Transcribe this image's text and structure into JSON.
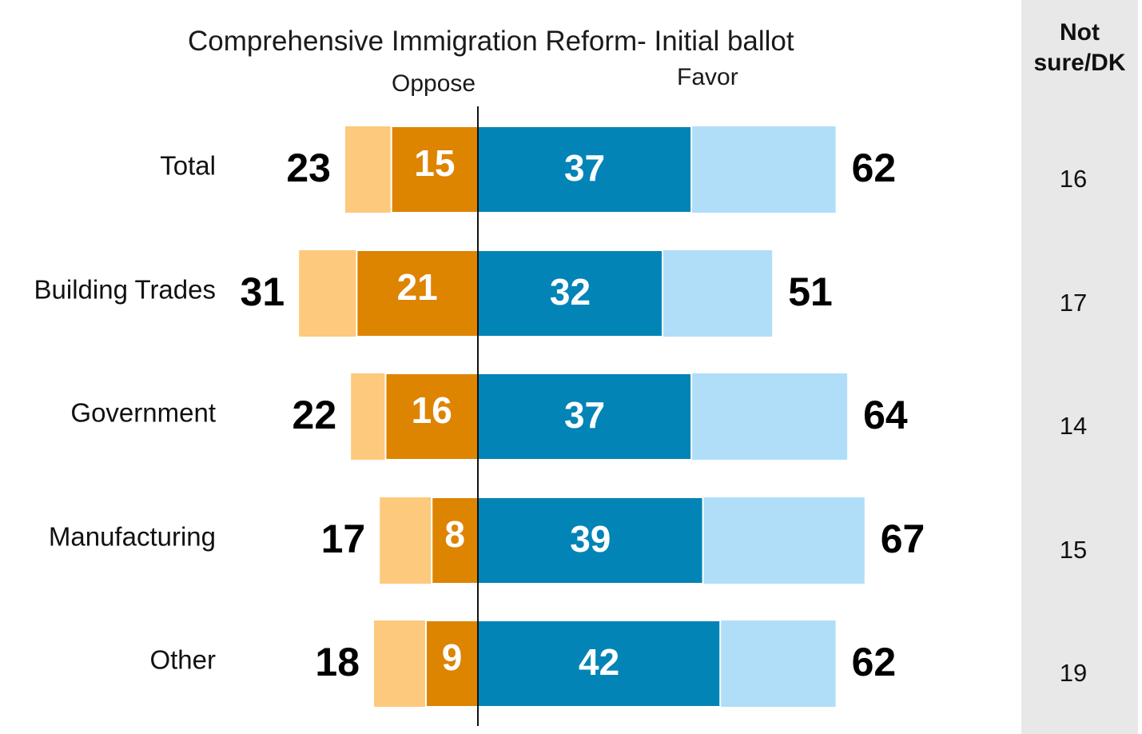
{
  "chart_data": {
    "type": "bar",
    "subtype": "diverging-stacked",
    "title": "Comprehensive Immigration Reform- Initial ballot",
    "oppose_label": "Oppose",
    "favor_label": "Favor",
    "not_sure_header": "Not sure/DK",
    "categories": [
      "Total",
      "Building Trades",
      "Government",
      "Manufacturing",
      "Other"
    ],
    "series": [
      {
        "name": "Oppose",
        "strong_values": [
          15,
          21,
          16,
          8,
          9
        ],
        "values": [
          23,
          31,
          22,
          17,
          18
        ]
      },
      {
        "name": "Favor",
        "strong_values": [
          37,
          32,
          37,
          39,
          42
        ],
        "values": [
          62,
          51,
          64,
          67,
          62
        ]
      },
      {
        "name": "Not sure/DK",
        "values": [
          16,
          17,
          14,
          15,
          19
        ]
      }
    ],
    "colors": {
      "oppose_strong": "#dd8400",
      "oppose_light": "#fdc97c",
      "favor_strong": "#0384b6",
      "favor_light": "#b0def8",
      "divider": "#111111",
      "not_sure_panel": "#e8e8e8"
    }
  }
}
